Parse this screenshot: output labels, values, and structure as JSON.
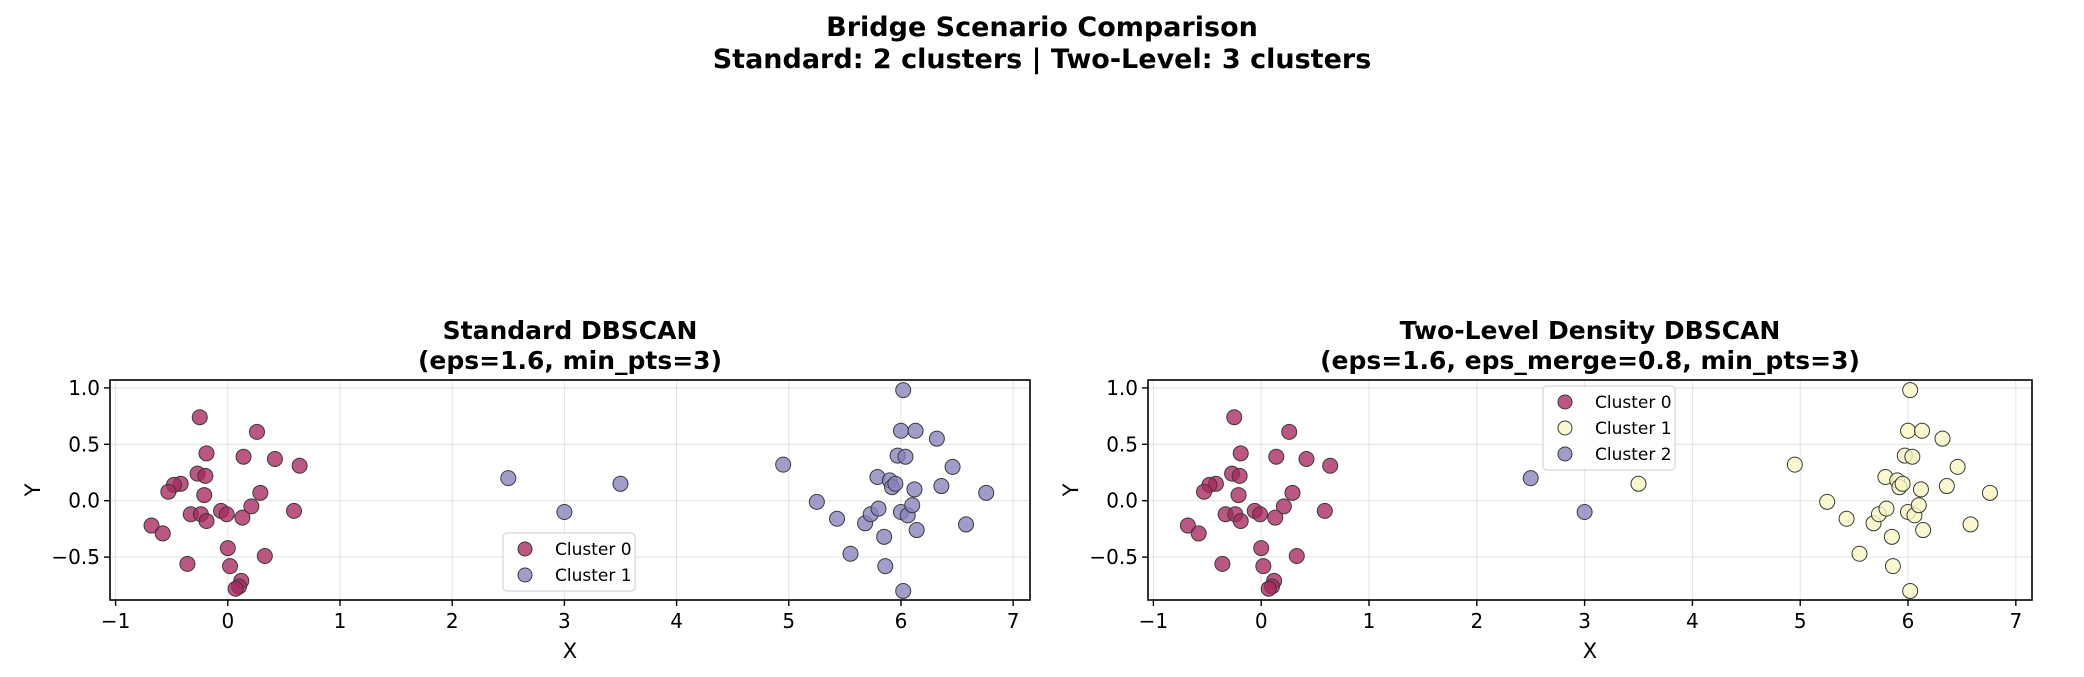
{
  "figure": {
    "suptitle_line1": "Bridge Scenario Comparison",
    "suptitle_line2": "Standard: 2 clusters | Two-Level: 3 clusters"
  },
  "chart_data": [
    {
      "type": "scatter",
      "title_line1": "Standard DBSCAN",
      "title_line2": "(eps=1.6, min_pts=3)",
      "xlabel": "X",
      "ylabel": "Y",
      "xlim": [
        -1.05,
        7.15
      ],
      "ylim": [
        -0.88,
        1.07
      ],
      "xticks": [
        -1,
        0,
        1,
        2,
        3,
        4,
        5,
        6,
        7
      ],
      "xtick_labels": [
        "−1",
        "0",
        "1",
        "2",
        "3",
        "4",
        "5",
        "6",
        "7"
      ],
      "yticks": [
        -0.5,
        0.0,
        0.5,
        1.0
      ],
      "ytick_labels": [
        "−0.5",
        "0.0",
        "0.5",
        "1.0"
      ],
      "grid": true,
      "legend_position": "lower-center",
      "series": [
        {
          "name": "Cluster 0",
          "color": "#a8285f",
          "x": [
            -0.25,
            0.26,
            -0.19,
            0.14,
            0.42,
            0.64,
            -0.27,
            -0.2,
            -0.42,
            -0.48,
            -0.53,
            -0.21,
            0.29,
            -0.33,
            -0.24,
            -0.06,
            -0.01,
            0.21,
            0.13,
            -0.19,
            -0.68,
            -0.58,
            0.0,
            0.33,
            -0.36,
            0.02,
            0.12,
            0.1,
            0.07,
            0.59
          ],
          "y": [
            0.74,
            0.61,
            0.42,
            0.39,
            0.37,
            0.31,
            0.24,
            0.22,
            0.15,
            0.14,
            0.08,
            0.05,
            0.07,
            -0.12,
            -0.12,
            -0.09,
            -0.12,
            -0.05,
            -0.15,
            -0.18,
            -0.22,
            -0.29,
            -0.42,
            -0.49,
            -0.56,
            -0.58,
            -0.71,
            -0.76,
            -0.78,
            -0.09
          ]
        },
        {
          "name": "Cluster 1",
          "color": "#8781bd",
          "x": [
            2.5,
            3.0,
            3.5,
            4.95,
            5.25,
            5.43,
            5.55,
            5.68,
            5.73,
            5.79,
            5.8,
            5.85,
            5.9,
            5.92,
            5.95,
            5.97,
            6.0,
            6.0,
            6.02,
            6.04,
            6.06,
            6.1,
            6.12,
            6.13,
            6.14,
            6.32,
            6.36,
            6.46,
            6.58,
            6.76,
            5.86,
            6.02
          ],
          "y": [
            0.2,
            -0.1,
            0.15,
            0.32,
            -0.01,
            -0.16,
            -0.47,
            -0.2,
            -0.12,
            0.21,
            -0.07,
            -0.32,
            0.18,
            0.12,
            0.15,
            0.4,
            0.62,
            -0.1,
            0.98,
            0.39,
            -0.13,
            -0.04,
            0.1,
            0.62,
            -0.26,
            0.55,
            0.13,
            0.3,
            -0.21,
            0.07,
            -0.58,
            -0.8
          ]
        }
      ]
    },
    {
      "type": "scatter",
      "title_line1": "Two-Level Density DBSCAN",
      "title_line2": "(eps=1.6, eps_merge=0.8, min_pts=3)",
      "xlabel": "X",
      "ylabel": "Y",
      "xlim": [
        -1.05,
        7.15
      ],
      "ylim": [
        -0.88,
        1.07
      ],
      "xticks": [
        -1,
        0,
        1,
        2,
        3,
        4,
        5,
        6,
        7
      ],
      "xtick_labels": [
        "−1",
        "0",
        "1",
        "2",
        "3",
        "4",
        "5",
        "6",
        "7"
      ],
      "yticks": [
        -0.5,
        0.0,
        0.5,
        1.0
      ],
      "ytick_labels": [
        "−0.5",
        "0.0",
        "0.5",
        "1.0"
      ],
      "grid": true,
      "legend_position": "upper-center",
      "series": [
        {
          "name": "Cluster 0",
          "color": "#a8285f",
          "x": [
            -0.25,
            0.26,
            -0.19,
            0.14,
            0.42,
            0.64,
            -0.27,
            -0.2,
            -0.42,
            -0.48,
            -0.53,
            -0.21,
            0.29,
            -0.33,
            -0.24,
            -0.06,
            -0.01,
            0.21,
            0.13,
            -0.19,
            -0.68,
            -0.58,
            0.0,
            0.33,
            -0.36,
            0.02,
            0.12,
            0.1,
            0.07,
            0.59
          ],
          "y": [
            0.74,
            0.61,
            0.42,
            0.39,
            0.37,
            0.31,
            0.24,
            0.22,
            0.15,
            0.14,
            0.08,
            0.05,
            0.07,
            -0.12,
            -0.12,
            -0.09,
            -0.12,
            -0.05,
            -0.15,
            -0.18,
            -0.22,
            -0.29,
            -0.42,
            -0.49,
            -0.56,
            -0.58,
            -0.71,
            -0.76,
            -0.78,
            -0.09
          ]
        },
        {
          "name": "Cluster 1",
          "color": "#f7f6c2",
          "x": [
            3.5,
            4.95,
            5.25,
            5.43,
            5.55,
            5.68,
            5.73,
            5.79,
            5.8,
            5.85,
            5.9,
            5.92,
            5.95,
            5.97,
            6.0,
            6.0,
            6.02,
            6.04,
            6.06,
            6.1,
            6.12,
            6.13,
            6.14,
            6.32,
            6.36,
            6.46,
            6.58,
            6.76,
            5.86,
            6.02
          ],
          "y": [
            0.15,
            0.32,
            -0.01,
            -0.16,
            -0.47,
            -0.2,
            -0.12,
            0.21,
            -0.07,
            -0.32,
            0.18,
            0.12,
            0.15,
            0.4,
            0.62,
            -0.1,
            0.98,
            0.39,
            -0.13,
            -0.04,
            0.1,
            0.62,
            -0.26,
            0.55,
            0.13,
            0.3,
            -0.21,
            0.07,
            -0.58,
            -0.8
          ]
        },
        {
          "name": "Cluster 2",
          "color": "#8781bd",
          "x": [
            2.5,
            3.0
          ],
          "y": [
            0.2,
            -0.1
          ]
        }
      ]
    }
  ]
}
